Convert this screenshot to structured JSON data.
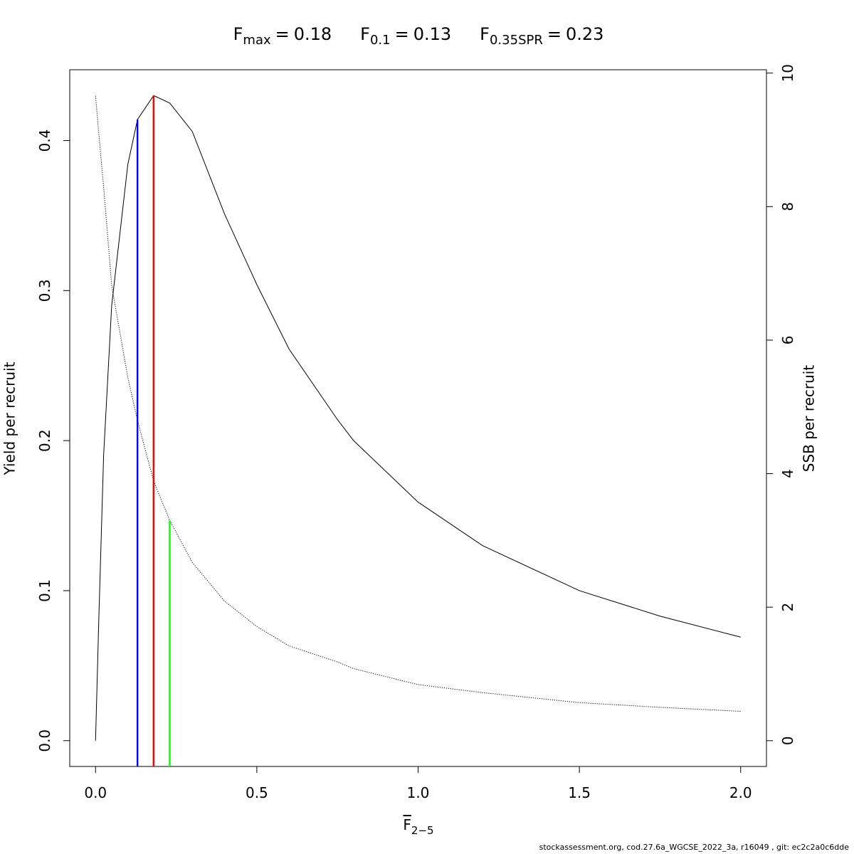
{
  "chart_data": {
    "type": "line",
    "x_label": {
      "symbol": "F",
      "subscript": "2−5"
    },
    "y_label": "Yield per recruit",
    "y2_label": "SSB per recruit",
    "footer": "stockassessment.org, cod.27.6a_WGCSE_2022_3a, r16049 , git: ec2c2a0c6dde",
    "x": [
      0,
      0.01,
      0.025,
      0.05,
      0.1,
      0.13,
      0.18,
      0.23,
      0.3,
      0.4,
      0.5,
      0.6,
      0.75,
      0.8,
      1.0,
      1.2,
      1.5,
      1.75,
      2.0
    ],
    "series": [
      {
        "name": "Yield per recruit",
        "color": "#000000",
        "line_style": "solid",
        "axis": "y",
        "values": [
          0,
          0.08,
          0.19,
          0.29,
          0.384,
          0.414,
          0.43,
          0.425,
          0.406,
          0.351,
          0.304,
          0.261,
          0.214,
          0.2,
          0.159,
          0.13,
          0.1,
          0.083,
          0.069
        ]
      },
      {
        "name": "SSB per recruit",
        "color": "#000000",
        "line_style": "dotted",
        "axis": "y2",
        "values": [
          9.66,
          9.1,
          8.3,
          6.82,
          5.44,
          4.8,
          3.89,
          3.3,
          2.67,
          2.09,
          1.71,
          1.42,
          1.18,
          1.08,
          0.84,
          0.72,
          0.57,
          0.5,
          0.44
        ]
      }
    ],
    "reference_lines": [
      {
        "symbol": "F",
        "subscript": "max",
        "relation": "=",
        "value": 0.18,
        "color": "#ff0000",
        "top": 0.43,
        "axis": "y"
      },
      {
        "symbol": "F",
        "subscript": "0.1",
        "relation": "=",
        "value": 0.13,
        "color": "#0000ff",
        "top": 0.414,
        "axis": "y"
      },
      {
        "symbol": "F",
        "subscript": "0.35SPR",
        "relation": "=",
        "value": 0.23,
        "color": "#00ff00",
        "top": 3.3,
        "axis": "y2"
      }
    ],
    "xlim": [
      -0.08,
      2.08
    ],
    "xticks": [
      {
        "value": 0,
        "label": "0.0"
      },
      {
        "value": 0.5,
        "label": "0.5"
      },
      {
        "value": 1,
        "label": "1.0"
      },
      {
        "value": 1.5,
        "label": "1.5"
      },
      {
        "value": 2,
        "label": "2.0"
      }
    ],
    "ylim": [
      -0.0172,
      0.4472
    ],
    "yticks": [
      {
        "value": 0,
        "label": "0.0"
      },
      0.1,
      0.2,
      0.3,
      0.4
    ],
    "y2lim": [
      -0.386,
      10.05
    ],
    "y2ticks": [
      0,
      2,
      4,
      6,
      8,
      10
    ]
  }
}
